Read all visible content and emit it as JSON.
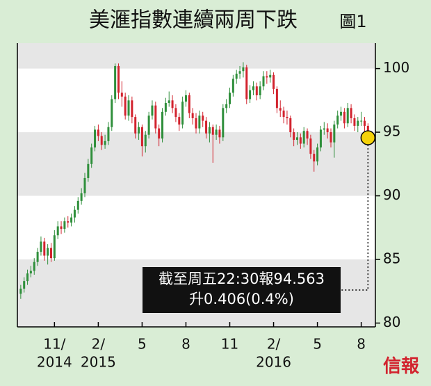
{
  "chart_data": {
    "type": "candlestick",
    "title": "美滙指數連續兩周下跌",
    "figure_label": "圖1",
    "brand": "信報",
    "annotation_lines": [
      "截至周五22:30報94.563",
      "升0.406(0.4%)"
    ],
    "up_color": "#2f8f3b",
    "down_color": "#d2232e",
    "band_color": "#e6e6e6",
    "marker_color": "#f5d20a",
    "bands": true,
    "xlim": [
      -1,
      105.2
    ],
    "ylim": [
      79.7,
      102
    ],
    "yticks": [
      80,
      85,
      90,
      95,
      100
    ],
    "xticks": [
      {
        "value": 10,
        "label": [
          "11/",
          "2014"
        ]
      },
      {
        "value": 23,
        "label": [
          "2/",
          "2015"
        ]
      },
      {
        "value": 36,
        "label": [
          "5"
        ]
      },
      {
        "value": 49,
        "label": [
          "8"
        ]
      },
      {
        "value": 62,
        "label": [
          "11"
        ]
      },
      {
        "value": 75,
        "label": [
          "2/",
          "2016"
        ]
      },
      {
        "value": 88,
        "label": [
          "5"
        ]
      },
      {
        "value": 101,
        "label": [
          "8"
        ]
      }
    ],
    "open": [
      82.3,
      82.7,
      83.3,
      83.9,
      84.1,
      84.8,
      85.6,
      86.4,
      85.3,
      85.9,
      85.1,
      86.9,
      87.6,
      87.4,
      88.0,
      87.9,
      88.3,
      88.9,
      89.6,
      90.2,
      91.4,
      92.5,
      93.8,
      95.2,
      94.7,
      94.0,
      94.3,
      95.4,
      97.6,
      100.2,
      98.1,
      97.8,
      96.3,
      97.5,
      96.2,
      94.9,
      95.4,
      93.9,
      94.8,
      96.3,
      97.1,
      95.3,
      94.5,
      96.6,
      97.3,
      97.5,
      96.9,
      96.2,
      95.6,
      97.4,
      97.9,
      96.5,
      96.1,
      95.3,
      96.3,
      95.9,
      94.9,
      95.4,
      94.8,
      95.2,
      94.6,
      96.9,
      97.2,
      98.1,
      99.2,
      99.6,
      99.8,
      100.1,
      97.6,
      98.3,
      98.6,
      97.9,
      98.6,
      99.4,
      99.3,
      99.5,
      98.4,
      96.9,
      96.7,
      96.2,
      96.1,
      95.0,
      94.4,
      94.6,
      94.1,
      95.1,
      94.5,
      93.3,
      92.7,
      93.8,
      95.2,
      95.3,
      95.0,
      94.2,
      95.6,
      96.3,
      96.6,
      95.7,
      96.9,
      96.1,
      95.5,
      95.9,
      95.9,
      95.5
    ],
    "high": [
      83.0,
      83.6,
      84.2,
      84.5,
      85.1,
      85.9,
      86.8,
      86.7,
      86.2,
      86.3,
      87.3,
      88.0,
      88.0,
      88.3,
      88.4,
      88.6,
      89.2,
      89.9,
      90.6,
      91.8,
      92.9,
      94.1,
      95.5,
      95.6,
      95.0,
      94.8,
      95.8,
      97.9,
      100.4,
      100.4,
      99.0,
      98.1,
      97.9,
      97.8,
      96.4,
      95.8,
      95.6,
      95.1,
      96.6,
      97.5,
      97.4,
      95.6,
      96.9,
      97.7,
      98.2,
      97.9,
      97.2,
      96.5,
      97.8,
      98.3,
      98.1,
      96.9,
      96.5,
      96.7,
      96.6,
      96.2,
      95.8,
      95.6,
      95.6,
      95.5,
      97.2,
      97.6,
      98.5,
      99.5,
      99.9,
      100.2,
      100.5,
      100.3,
      98.7,
      99.0,
      98.9,
      99.0,
      99.8,
      99.8,
      99.9,
      99.7,
      98.6,
      97.5,
      97.0,
      96.7,
      96.3,
      95.3,
      95.0,
      94.9,
      95.4,
      95.3,
      94.8,
      93.6,
      94.1,
      95.5,
      95.8,
      95.7,
      95.3,
      95.9,
      96.7,
      97.0,
      96.9,
      97.3,
      97.2,
      96.4,
      96.2,
      96.6,
      96.2,
      95.7
    ],
    "low": [
      81.9,
      82.4,
      83.0,
      83.6,
      83.8,
      84.5,
      85.3,
      84.9,
      84.6,
      84.8,
      84.9,
      86.6,
      87.0,
      87.1,
      87.5,
      87.6,
      87.9,
      88.6,
      89.3,
      89.9,
      91.1,
      92.2,
      93.5,
      94.3,
      93.6,
      93.7,
      94.0,
      95.1,
      97.3,
      97.6,
      97.0,
      96.0,
      95.9,
      95.7,
      94.5,
      94.4,
      93.1,
      93.4,
      94.5,
      96.0,
      94.9,
      93.9,
      94.2,
      96.3,
      97.0,
      96.5,
      95.8,
      95.1,
      95.3,
      97.0,
      96.1,
      95.6,
      94.9,
      94.9,
      95.4,
      94.5,
      94.2,
      92.6,
      94.4,
      94.1,
      94.3,
      96.5,
      96.9,
      97.8,
      98.8,
      99.2,
      99.3,
      97.2,
      97.3,
      97.9,
      97.5,
      97.6,
      98.3,
      98.8,
      98.9,
      98.0,
      96.5,
      96.2,
      95.7,
      95.6,
      94.6,
      93.9,
      94.0,
      93.7,
      93.8,
      94.0,
      92.9,
      91.9,
      92.4,
      93.5,
      94.8,
      94.5,
      93.8,
      93.0,
      95.3,
      95.9,
      95.3,
      95.4,
      95.7,
      95.1,
      95.0,
      95.5,
      95.1,
      94.3
    ],
    "close": [
      82.7,
      83.3,
      83.9,
      84.1,
      84.8,
      85.6,
      86.4,
      85.3,
      85.9,
      85.1,
      86.9,
      87.6,
      87.4,
      88.0,
      87.9,
      88.3,
      88.9,
      89.6,
      90.2,
      91.4,
      92.5,
      93.8,
      95.2,
      94.7,
      94.0,
      94.3,
      95.4,
      97.6,
      100.2,
      98.1,
      97.8,
      96.3,
      97.5,
      96.2,
      94.9,
      95.4,
      93.9,
      94.8,
      96.3,
      97.1,
      95.3,
      94.5,
      96.6,
      97.3,
      97.5,
      96.9,
      96.2,
      95.6,
      97.4,
      97.9,
      96.5,
      96.1,
      95.3,
      96.3,
      95.9,
      94.9,
      95.4,
      94.8,
      95.2,
      94.6,
      96.9,
      97.2,
      98.1,
      99.2,
      99.6,
      99.8,
      100.1,
      97.6,
      98.3,
      98.6,
      97.9,
      98.6,
      99.4,
      99.3,
      99.5,
      98.4,
      96.9,
      96.7,
      96.2,
      96.1,
      95.0,
      94.4,
      94.6,
      94.1,
      95.1,
      94.5,
      93.3,
      92.7,
      93.8,
      95.2,
      95.3,
      95.0,
      94.2,
      95.6,
      96.3,
      96.6,
      95.7,
      96.9,
      96.1,
      95.5,
      95.9,
      95.9,
      95.5,
      94.563
    ]
  }
}
